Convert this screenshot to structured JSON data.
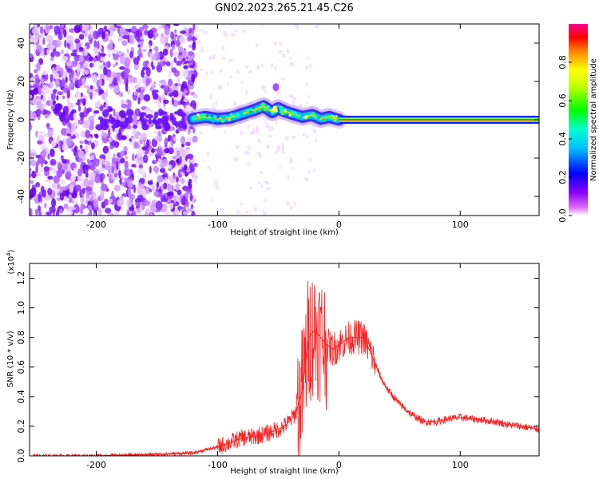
{
  "figure": {
    "title": "GN02.2023.265.21.45.C26"
  },
  "chart_data": [
    {
      "type": "heatmap",
      "xlabel": "Height of straight line (km)",
      "ylabel": "Frequency (Hz)",
      "xlim": [
        -255,
        165
      ],
      "ylim": [
        -50,
        50
      ],
      "xticks": [
        -200,
        -100,
        0,
        100
      ],
      "yticks": [
        -40,
        -20,
        0,
        20,
        40
      ],
      "colorbar": {
        "label": "Normalized spectral amplitude",
        "range": [
          0,
          1
        ],
        "ticks": [
          "0.0",
          "0.2",
          "0.4",
          "0.6",
          "0.8"
        ],
        "tick_values": [
          0.0,
          0.2,
          0.4,
          0.6,
          0.8
        ],
        "colormap": [
          "#ffffff",
          "#9400d3",
          "#4b00ff",
          "#0000ff",
          "#00ffff",
          "#00ff00",
          "#ffff00",
          "#ff7f00",
          "#ff0000",
          "#ff00a0"
        ]
      },
      "features": {
        "noise_region_x": [
          -255,
          -118
        ],
        "wandering_signal": [
          {
            "x": -120,
            "y": 0.5
          },
          {
            "x": -110,
            "y": 1.5
          },
          {
            "x": -100,
            "y": 0.5
          },
          {
            "x": -90,
            "y": 1.0
          },
          {
            "x": -80,
            "y": 3.0
          },
          {
            "x": -70,
            "y": 5.0
          },
          {
            "x": -62,
            "y": 7.0
          },
          {
            "x": -55,
            "y": 4.0
          },
          {
            "x": -50,
            "y": 6.0
          },
          {
            "x": -45,
            "y": 4.5
          },
          {
            "x": -38,
            "y": 3.0
          },
          {
            "x": -30,
            "y": 1.5
          },
          {
            "x": -22,
            "y": 2.5
          },
          {
            "x": -15,
            "y": 0.5
          },
          {
            "x": -8,
            "y": 1.5
          },
          {
            "x": 0,
            "y": 0.0
          }
        ],
        "steady_line": {
          "x_range": [
            0,
            165
          ],
          "frequency": 0
        }
      }
    },
    {
      "type": "line",
      "xlabel": "Height of straight line (km)",
      "ylabel": "SNR (10 * v/v)",
      "y_multiplier": "(x10",
      "y_multiplier_exp": "4",
      "y_multiplier_close": ")",
      "xlim": [
        -255,
        165
      ],
      "ylim": [
        0,
        1.3
      ],
      "xticks": [
        -200,
        -100,
        0,
        100
      ],
      "yticks": [
        "0.0",
        "0.2",
        "0.4",
        "0.6",
        "0.8",
        "1.0",
        "1.2"
      ],
      "ytick_values": [
        0.0,
        0.2,
        0.4,
        0.6,
        0.8,
        1.0,
        1.2
      ],
      "series": [
        {
          "color": "#ff2020",
          "x": [
            -255,
            -200,
            -150,
            -120,
            -110,
            -100,
            -90,
            -80,
            -70,
            -60,
            -50,
            -45,
            -40,
            -35,
            -30,
            -25,
            -20,
            -15,
            -10,
            -5,
            0,
            5,
            10,
            15,
            20,
            25,
            30,
            35,
            40,
            50,
            60,
            70,
            80,
            90,
            100,
            110,
            120,
            130,
            140,
            150,
            165
          ],
          "y": [
            0.0,
            0.0,
            0.01,
            0.02,
            0.04,
            0.06,
            0.09,
            0.12,
            0.13,
            0.15,
            0.18,
            0.2,
            0.24,
            0.3,
            0.45,
            0.8,
            0.85,
            0.8,
            0.75,
            0.72,
            0.75,
            0.78,
            0.8,
            0.8,
            0.8,
            0.72,
            0.62,
            0.52,
            0.45,
            0.35,
            0.28,
            0.23,
            0.23,
            0.25,
            0.26,
            0.25,
            0.24,
            0.23,
            0.21,
            0.2,
            0.18
          ]
        }
      ]
    }
  ]
}
